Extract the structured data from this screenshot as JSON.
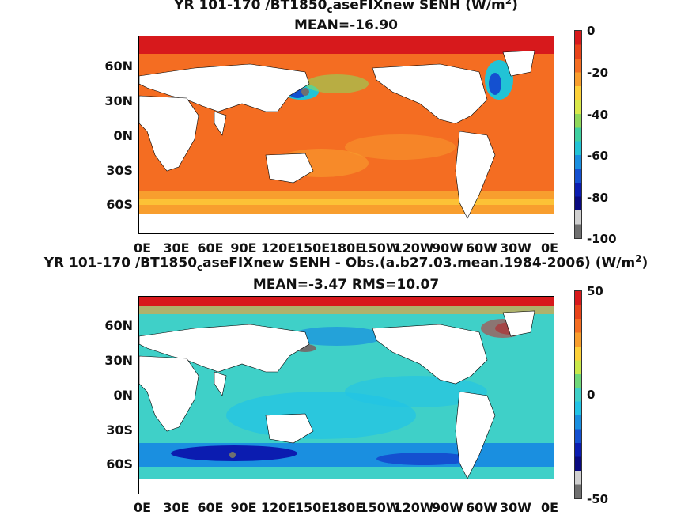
{
  "panel1": {
    "title_line1_pre": "YR 101-170 /BT1850",
    "title_line1_sub": "c",
    "title_line1_post": "aseFIXnew  SENH (W/m",
    "title_line1_sup": "2",
    "title_line1_end": ")",
    "title_line2": "MEAN=-16.90",
    "colorbar_ticks": [
      "0",
      "-20",
      "-40",
      "-60",
      "-80",
      "-100"
    ],
    "colorbar_colors": [
      "#d7191c",
      "#e8431a",
      "#f46d22",
      "#f89e2e",
      "#fdd13a",
      "#d9e84a",
      "#8fd85a",
      "#3fd0a0",
      "#22c3d6",
      "#1a8fe0",
      "#1450d0",
      "#0b1cb0",
      "#0a0a80",
      "#d0d0d0",
      "#707070"
    ]
  },
  "panel2": {
    "title_line1_pre": "YR 101-170 /BT1850",
    "title_line1_sub": "c",
    "title_line1_post": "aseFIXnew SENH - Obs.(a.b27.03.mean.1984-2006) (W/m",
    "title_line1_sup": "2",
    "title_line1_end": ")",
    "title_line2": "MEAN=-3.47 RMS=10.07",
    "colorbar_ticks": [
      "50",
      "0",
      "-50"
    ],
    "colorbar_colors": [
      "#d7191c",
      "#e8431a",
      "#f46d22",
      "#f89e2e",
      "#fdd13a",
      "#c9e84a",
      "#6fd87a",
      "#3fd0c8",
      "#22c3e6",
      "#1a8fe0",
      "#1450d0",
      "#0b1cb0",
      "#0a0a80",
      "#d0d0d0",
      "#707070"
    ]
  },
  "lat_labels": [
    "60N",
    "30N",
    "0N",
    "30S",
    "60S"
  ],
  "lon_labels": [
    "0E",
    "30E",
    "60E",
    "90E",
    "120E",
    "150E",
    "180E",
    "150W",
    "120W",
    "90W",
    "60W",
    "30W",
    "0E"
  ]
}
